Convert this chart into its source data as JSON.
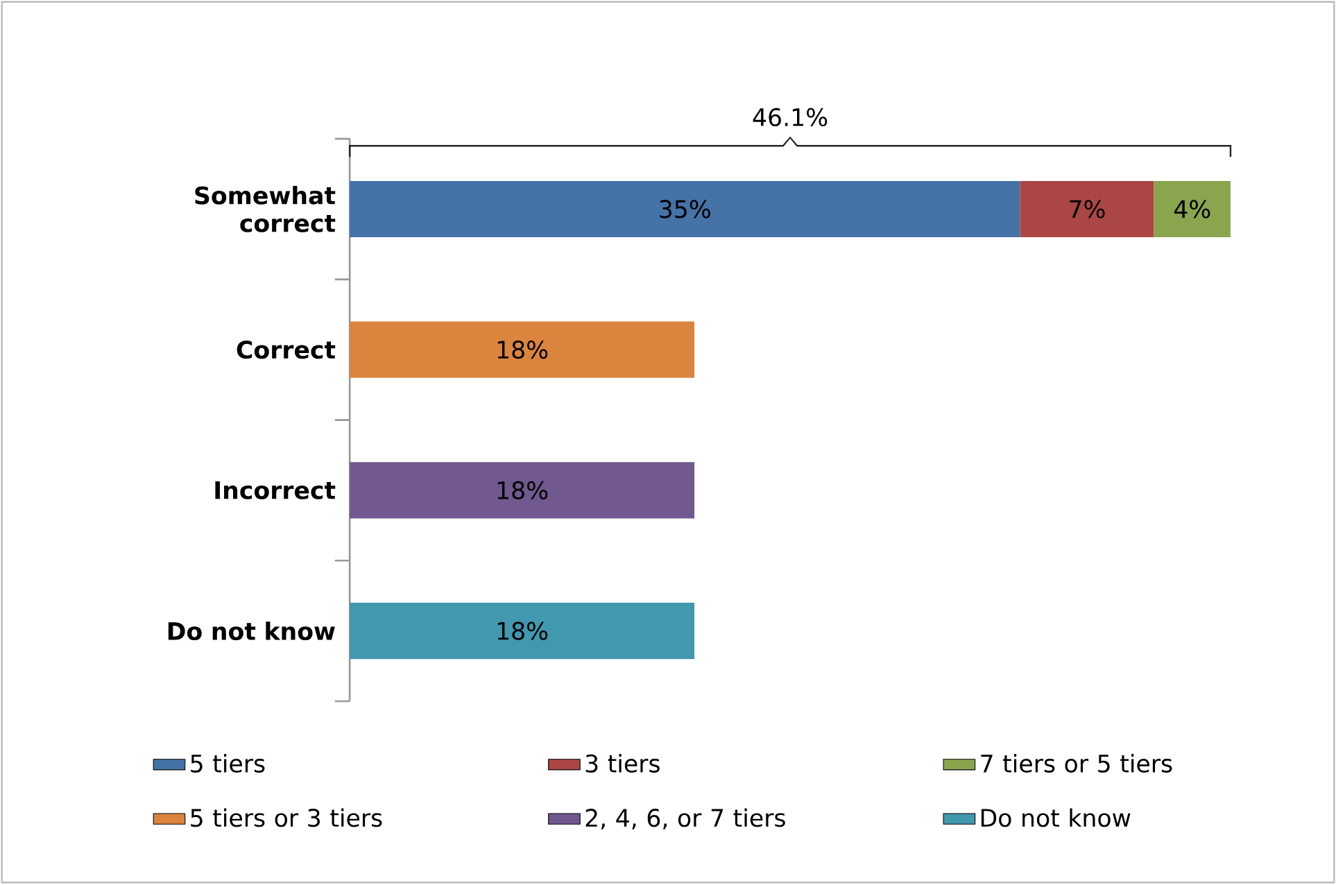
{
  "chart_data": {
    "type": "bar",
    "orientation": "horizontal",
    "stacked": true,
    "categories": [
      "Somewhat correct",
      "Correct",
      "Incorrect",
      "Do not know"
    ],
    "series": [
      {
        "name": "5 tiers",
        "color": "#4572a7",
        "values": [
          35,
          null,
          null,
          null
        ],
        "value_labels": [
          "35%",
          null,
          null,
          null
        ]
      },
      {
        "name": "3 tiers",
        "color": "#aa4643",
        "values": [
          7,
          null,
          null,
          null
        ],
        "value_labels": [
          "7%",
          null,
          null,
          null
        ]
      },
      {
        "name": "7 tiers or 5 tiers",
        "color": "#89a54e",
        "values": [
          4,
          null,
          null,
          null
        ],
        "value_labels": [
          "4%",
          null,
          null,
          null
        ]
      },
      {
        "name": "5 tiers or 3 tiers",
        "color": "#db843d",
        "values": [
          null,
          18,
          null,
          null
        ],
        "value_labels": [
          null,
          "18%",
          null,
          null
        ]
      },
      {
        "name": "2, 4, 6, or 7 tiers",
        "color": "#71588f",
        "values": [
          null,
          null,
          18,
          null
        ],
        "value_labels": [
          null,
          null,
          "18%",
          null
        ]
      },
      {
        "name": "Do not know",
        "color": "#4198af",
        "values": [
          null,
          null,
          null,
          18
        ],
        "value_labels": [
          null,
          null,
          null,
          "18%"
        ]
      }
    ],
    "annotations": [
      "46.1%"
    ],
    "legend": "bottom"
  }
}
